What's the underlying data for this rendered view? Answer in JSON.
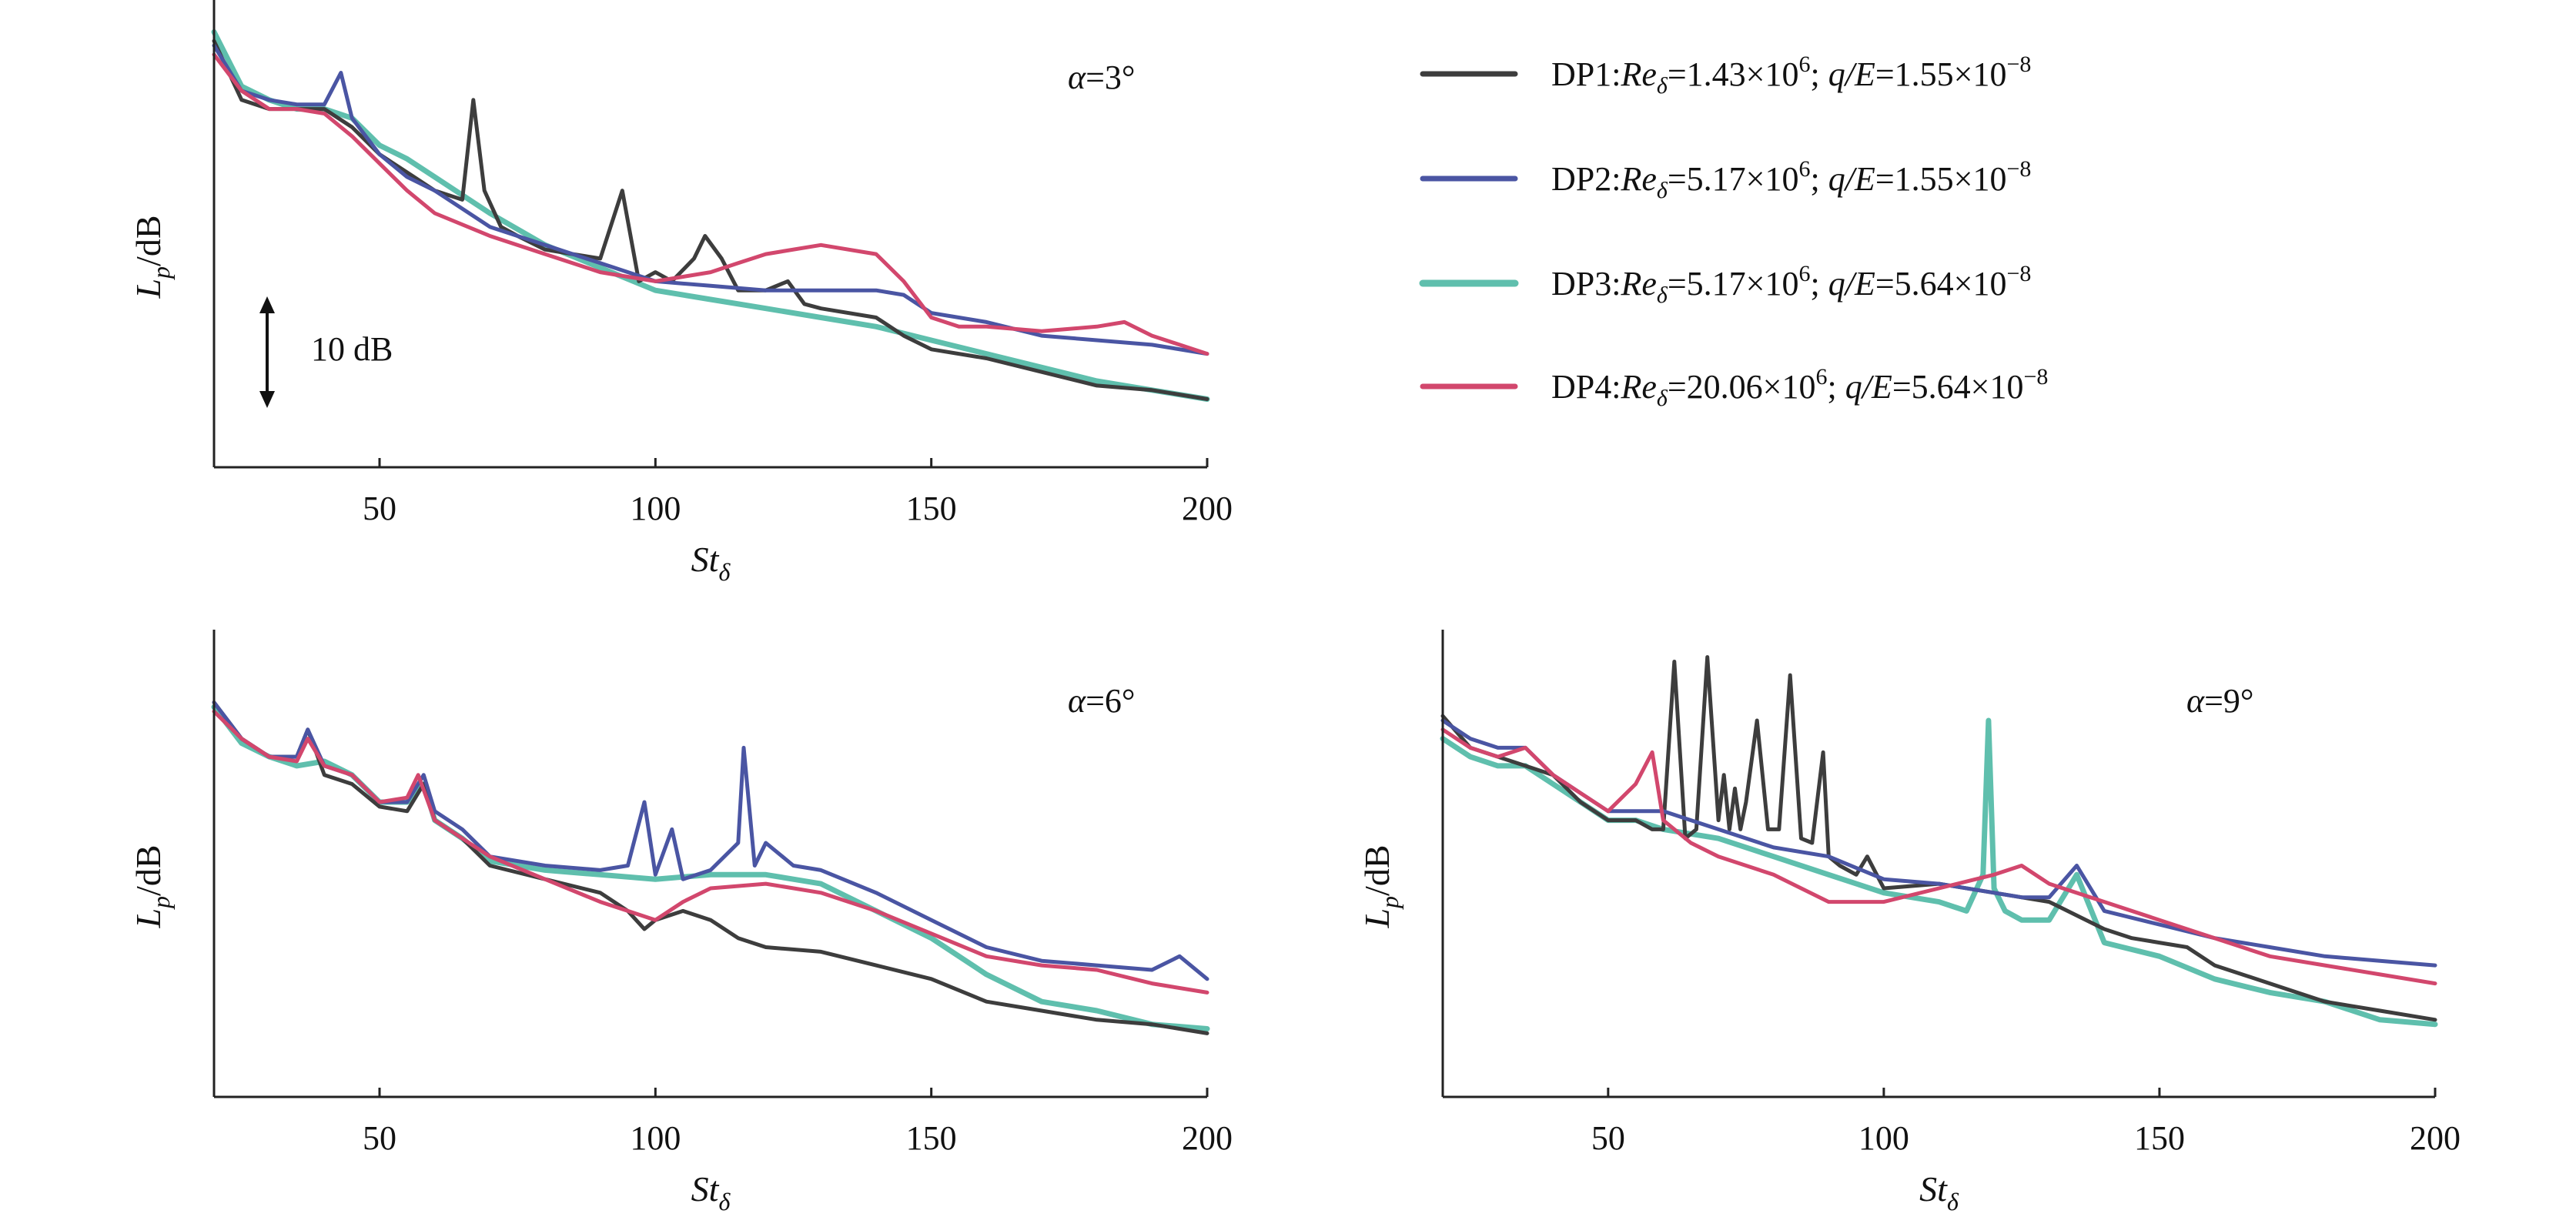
{
  "chart_data": [
    {
      "type": "line",
      "panel": "top-left",
      "annotation": "α=3°",
      "scale_bar": "10 dB",
      "ylabel": "L_p/dB",
      "xlabel": "St_δ",
      "xlim": [
        20,
        200
      ],
      "ylim": [
        0,
        100
      ],
      "xticks": [
        "50",
        "100",
        "150",
        "200"
      ],
      "series": [
        {
          "name": "DP1",
          "x": [
            20,
            25,
            30,
            35,
            40,
            45,
            50,
            55,
            60,
            65,
            67,
            69,
            72,
            75,
            80,
            85,
            90,
            94,
            97,
            100,
            103,
            107,
            109,
            112,
            115,
            120,
            124,
            127,
            130,
            140,
            145,
            150,
            160,
            170,
            180,
            190,
            200
          ],
          "y": [
            93,
            80,
            78,
            78,
            78,
            74,
            68,
            64,
            60,
            58,
            80,
            60,
            52,
            50,
            47,
            46,
            45,
            60,
            40,
            42,
            40,
            45,
            50,
            45,
            38,
            38,
            40,
            35,
            34,
            32,
            28,
            25,
            23,
            20,
            17,
            16,
            14
          ]
        },
        {
          "name": "DP2",
          "x": [
            20,
            25,
            30,
            35,
            40,
            43,
            45,
            50,
            55,
            60,
            70,
            80,
            90,
            100,
            110,
            120,
            130,
            140,
            145,
            150,
            160,
            170,
            180,
            190,
            200
          ],
          "y": [
            92,
            82,
            80,
            79,
            79,
            86,
            76,
            68,
            63,
            60,
            52,
            48,
            44,
            40,
            39,
            38,
            38,
            38,
            37,
            33,
            31,
            28,
            27,
            26,
            24
          ]
        },
        {
          "name": "DP3",
          "x": [
            20,
            25,
            30,
            35,
            40,
            45,
            50,
            55,
            60,
            70,
            80,
            90,
            100,
            110,
            120,
            130,
            140,
            150,
            160,
            170,
            180,
            190,
            200
          ],
          "y": [
            95,
            83,
            80,
            78,
            78,
            76,
            70,
            67,
            63,
            55,
            48,
            43,
            38,
            36,
            34,
            32,
            30,
            27,
            24,
            21,
            18,
            16,
            14
          ]
        },
        {
          "name": "DP4",
          "x": [
            20,
            25,
            30,
            35,
            40,
            45,
            50,
            55,
            60,
            70,
            80,
            90,
            100,
            110,
            115,
            120,
            130,
            140,
            145,
            150,
            155,
            160,
            170,
            180,
            185,
            190,
            200
          ],
          "y": [
            90,
            82,
            78,
            78,
            77,
            72,
            66,
            60,
            55,
            50,
            46,
            42,
            40,
            42,
            44,
            46,
            48,
            46,
            40,
            32,
            30,
            30,
            29,
            30,
            31,
            28,
            24
          ]
        }
      ]
    },
    {
      "type": "line",
      "panel": "bottom-left",
      "annotation": "α=6°",
      "ylabel": "L_p/dB",
      "xlabel": "St_δ",
      "xlim": [
        20,
        200
      ],
      "ylim": [
        0,
        100
      ],
      "xticks": [
        "50",
        "100",
        "150",
        "200"
      ],
      "series": [
        {
          "name": "DP1",
          "x": [
            20,
            25,
            30,
            35,
            37,
            40,
            45,
            50,
            55,
            58,
            60,
            65,
            70,
            80,
            90,
            95,
            98,
            100,
            105,
            110,
            115,
            120,
            130,
            140,
            150,
            160,
            170,
            180,
            190,
            200
          ],
          "y": [
            86,
            78,
            74,
            74,
            80,
            70,
            68,
            63,
            62,
            68,
            60,
            56,
            50,
            47,
            44,
            40,
            36,
            38,
            40,
            38,
            34,
            32,
            31,
            28,
            25,
            20,
            18,
            16,
            15,
            13
          ]
        },
        {
          "name": "DP2",
          "x": [
            20,
            25,
            30,
            35,
            37,
            40,
            45,
            50,
            55,
            58,
            60,
            65,
            70,
            80,
            90,
            95,
            98,
            100,
            103,
            105,
            110,
            115,
            116,
            118,
            120,
            125,
            130,
            140,
            150,
            160,
            170,
            180,
            190,
            195,
            200
          ],
          "y": [
            86,
            78,
            74,
            74,
            80,
            72,
            70,
            64,
            64,
            70,
            62,
            58,
            52,
            50,
            49,
            50,
            64,
            48,
            58,
            47,
            49,
            55,
            76,
            50,
            55,
            50,
            49,
            44,
            38,
            32,
            29,
            28,
            27,
            30,
            25
          ]
        },
        {
          "name": "DP3",
          "x": [
            20,
            25,
            30,
            35,
            40,
            45,
            50,
            55,
            58,
            60,
            65,
            70,
            80,
            90,
            100,
            110,
            120,
            130,
            140,
            150,
            160,
            170,
            180,
            190,
            200
          ],
          "y": [
            85,
            77,
            74,
            72,
            73,
            70,
            64,
            64,
            68,
            60,
            56,
            51,
            49,
            48,
            47,
            48,
            48,
            46,
            40,
            34,
            26,
            20,
            18,
            15,
            14
          ]
        },
        {
          "name": "DP4",
          "x": [
            20,
            25,
            30,
            35,
            37,
            40,
            45,
            50,
            55,
            57,
            60,
            65,
            70,
            80,
            90,
            95,
            100,
            105,
            110,
            120,
            130,
            140,
            150,
            160,
            170,
            180,
            190,
            200
          ],
          "y": [
            84,
            78,
            74,
            73,
            78,
            72,
            70,
            64,
            65,
            70,
            60,
            56,
            52,
            47,
            42,
            40,
            38,
            42,
            45,
            46,
            44,
            40,
            35,
            30,
            28,
            27,
            24,
            22
          ]
        }
      ]
    },
    {
      "type": "line",
      "panel": "bottom-right",
      "annotation": "α=9°",
      "ylabel": "L_p/dB",
      "xlabel": "St_δ",
      "xlim": [
        20,
        200
      ],
      "ylim": [
        0,
        100
      ],
      "xticks": [
        "50",
        "100",
        "150",
        "200"
      ],
      "series": [
        {
          "name": "DP1",
          "x": [
            20,
            25,
            30,
            35,
            40,
            45,
            50,
            55,
            58,
            60,
            62,
            64,
            66,
            68,
            70,
            71,
            72,
            73,
            74,
            75,
            77,
            79,
            81,
            83,
            85,
            87,
            89,
            90,
            92,
            95,
            97,
            100,
            110,
            120,
            130,
            140,
            145,
            150,
            155,
            160,
            170,
            180,
            190,
            200
          ],
          "y": [
            83,
            76,
            74,
            72,
            70,
            64,
            60,
            60,
            58,
            58,
            95,
            56,
            58,
            96,
            60,
            70,
            58,
            67,
            58,
            64,
            82,
            58,
            58,
            92,
            56,
            55,
            75,
            52,
            50,
            48,
            52,
            45,
            46,
            44,
            42,
            36,
            34,
            33,
            32,
            28,
            24,
            20,
            18,
            16
          ]
        },
        {
          "name": "DP2",
          "x": [
            20,
            25,
            30,
            35,
            40,
            45,
            50,
            55,
            60,
            70,
            80,
            90,
            100,
            110,
            120,
            125,
            130,
            135,
            140,
            150,
            160,
            170,
            180,
            190,
            200
          ],
          "y": [
            82,
            78,
            76,
            76,
            70,
            66,
            62,
            62,
            62,
            58,
            54,
            52,
            47,
            46,
            44,
            43,
            43,
            50,
            40,
            37,
            34,
            32,
            30,
            29,
            28
          ]
        },
        {
          "name": "DP3",
          "x": [
            20,
            25,
            30,
            35,
            40,
            45,
            50,
            55,
            60,
            70,
            80,
            90,
            100,
            110,
            115,
            118,
            119,
            120,
            122,
            125,
            130,
            135,
            140,
            150,
            160,
            170,
            180,
            190,
            200
          ],
          "y": [
            78,
            74,
            72,
            72,
            68,
            64,
            60,
            60,
            58,
            56,
            52,
            48,
            44,
            42,
            40,
            48,
            82,
            45,
            40,
            38,
            38,
            48,
            33,
            30,
            25,
            22,
            20,
            16,
            15
          ]
        },
        {
          "name": "DP4",
          "x": [
            20,
            25,
            30,
            35,
            40,
            45,
            50,
            55,
            58,
            60,
            65,
            70,
            80,
            90,
            100,
            110,
            120,
            125,
            130,
            140,
            150,
            160,
            170,
            180,
            190,
            200
          ],
          "y": [
            80,
            76,
            74,
            76,
            70,
            66,
            62,
            68,
            75,
            60,
            55,
            52,
            48,
            42,
            42,
            45,
            48,
            50,
            46,
            42,
            38,
            34,
            30,
            28,
            26,
            24
          ]
        }
      ]
    }
  ],
  "legend": {
    "placement": "top-right",
    "entries": [
      {
        "name": "DP1",
        "color": "#3d3d3d",
        "prefix": "DP1:",
        "re": "Re",
        "re_sub": "δ",
        "re_val": "=1.43×10",
        "re_exp": "6",
        "sep": "; ",
        "q": "q/E",
        "q_val": "=1.55×10",
        "q_exp": "−8"
      },
      {
        "name": "DP2",
        "color": "#4a55a3",
        "prefix": "DP2:",
        "re": "Re",
        "re_sub": "δ",
        "re_val": "=5.17×10",
        "re_exp": "6",
        "sep": "; ",
        "q": "q/E",
        "q_val": "=1.55×10",
        "q_exp": "−8"
      },
      {
        "name": "DP3",
        "color": "#5fbfad",
        "prefix": "DP3:",
        "re": "Re",
        "re_sub": "δ",
        "re_val": "=5.17×10",
        "re_exp": "6",
        "sep": "; ",
        "q": "q/E",
        "q_val": "=5.64×10",
        "q_exp": "−8"
      },
      {
        "name": "DP4",
        "color": "#d2476d",
        "prefix": "DP4:",
        "re": "Re",
        "re_sub": "δ",
        "re_val": "=20.06×10",
        "re_exp": "6",
        "sep": "; ",
        "q": "q/E",
        "q_val": "=5.64×10",
        "q_exp": "−8"
      }
    ]
  },
  "labels": {
    "ylabel_main": "L",
    "ylabel_sub": "p",
    "ylabel_unit": "/dB",
    "xlabel_main": "St",
    "xlabel_sub": "δ",
    "scale_bar_label": "10 dB"
  }
}
